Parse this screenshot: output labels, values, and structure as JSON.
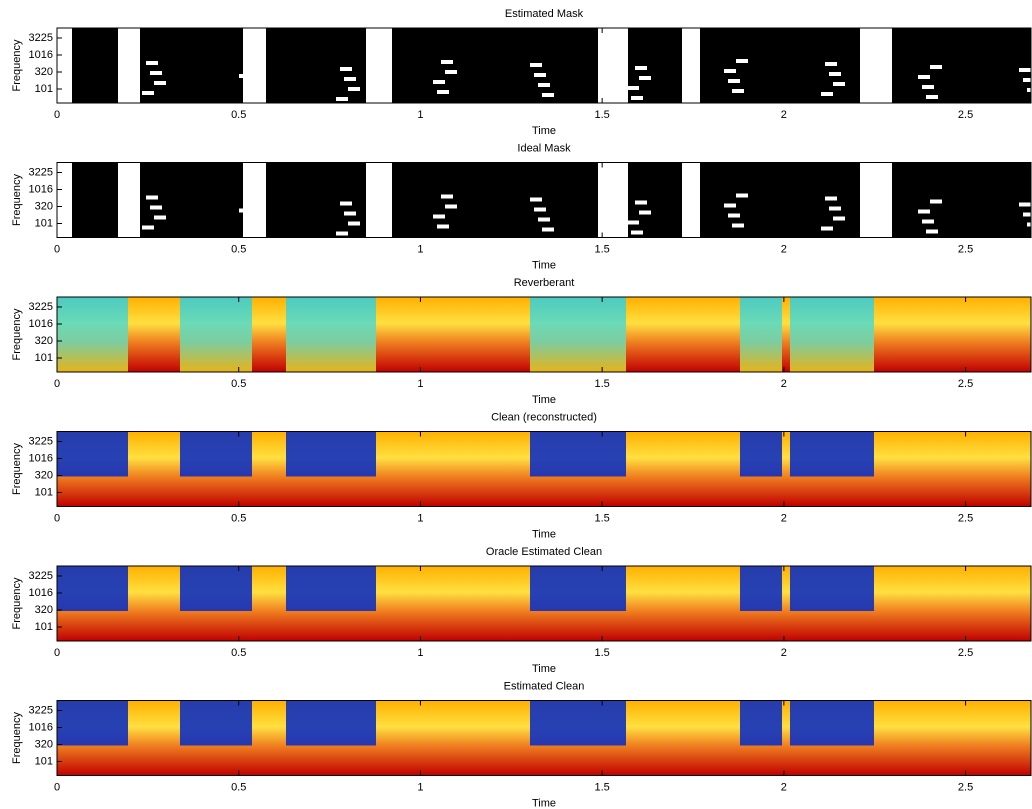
{
  "chart_data": [
    {
      "type": "heatmap",
      "title": "Estimated Mask",
      "xlabel": "Time",
      "ylabel": "Frequency",
      "colormap": "binary",
      "yscale": "log",
      "xlim": [
        0,
        2.68
      ],
      "xticks": [
        0,
        0.5,
        1,
        1.5,
        2,
        2.5
      ],
      "ylim": [
        39,
        6350
      ],
      "yticks": [
        101,
        320,
        1016,
        3225
      ]
    },
    {
      "type": "heatmap",
      "title": "Ideal Mask",
      "xlabel": "Time",
      "ylabel": "Frequency",
      "colormap": "binary",
      "yscale": "log",
      "xlim": [
        0,
        2.68
      ],
      "xticks": [
        0,
        0.5,
        1,
        1.5,
        2,
        2.5
      ],
      "ylim": [
        39,
        6350
      ],
      "yticks": [
        101,
        320,
        1016,
        3225
      ]
    },
    {
      "type": "heatmap",
      "title": "Reverberant",
      "xlabel": "Time",
      "ylabel": "Frequency",
      "colormap": "jet",
      "yscale": "log",
      "xlim": [
        0,
        2.68
      ],
      "xticks": [
        0,
        0.5,
        1,
        1.5,
        2,
        2.5
      ],
      "ylim": [
        39,
        6350
      ],
      "yticks": [
        101,
        320,
        1016,
        3225
      ]
    },
    {
      "type": "heatmap",
      "title": "Clean (reconstructed)",
      "xlabel": "Time",
      "ylabel": "Frequency",
      "colormap": "jet",
      "yscale": "log",
      "xlim": [
        0,
        2.68
      ],
      "xticks": [
        0,
        0.5,
        1,
        1.5,
        2,
        2.5
      ],
      "ylim": [
        39,
        6350
      ],
      "yticks": [
        101,
        320,
        1016,
        3225
      ]
    },
    {
      "type": "heatmap",
      "title": "Oracle Estimated Clean",
      "xlabel": "Time",
      "ylabel": "Frequency",
      "colormap": "jet",
      "yscale": "log",
      "xlim": [
        0,
        2.68
      ],
      "xticks": [
        0,
        0.5,
        1,
        1.5,
        2,
        2.5
      ],
      "ylim": [
        39,
        6350
      ],
      "yticks": [
        101,
        320,
        1016,
        3225
      ]
    },
    {
      "type": "heatmap",
      "title": "Estimated Clean",
      "xlabel": "Time",
      "ylabel": "Frequency",
      "colormap": "jet",
      "yscale": "log",
      "xlim": [
        0,
        2.68
      ],
      "xticks": [
        0,
        0.5,
        1,
        1.5,
        2,
        2.5
      ],
      "ylim": [
        39,
        6350
      ],
      "yticks": [
        101,
        320,
        1016,
        3225
      ]
    }
  ]
}
